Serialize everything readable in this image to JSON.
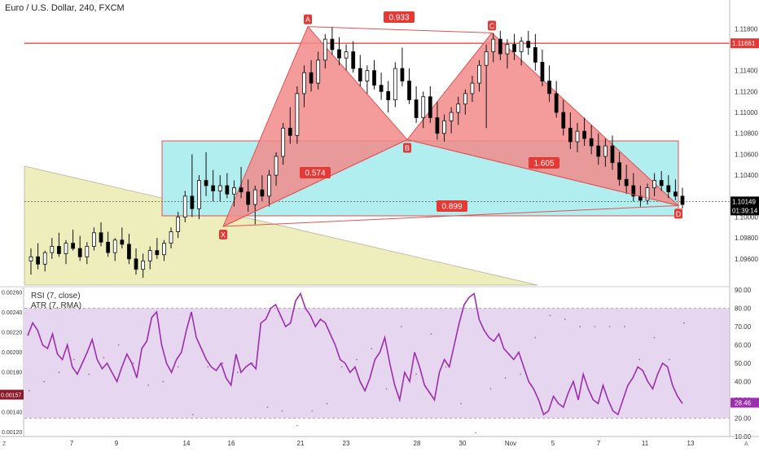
{
  "symbol_title": "Euro / U.S. Dollar, 240, FXCM",
  "indicators": {
    "rsi_label": "RSI (7, close)",
    "atr_label": "ATR (7, RMA)"
  },
  "price_axis": {
    "ticks": [
      "1.11800",
      "1.11400",
      "1.11200",
      "1.11000",
      "1.10800",
      "1.10600",
      "1.10400",
      "1.10000",
      "1.09800",
      "1.09600"
    ],
    "current_price": "1.10149",
    "countdown": "01:39:14",
    "resistance_price": "1.11661"
  },
  "atr_axis": {
    "ticks": [
      "0.00260",
      "0.00240",
      "0.00220",
      "0.00200",
      "0.00180",
      "0.00140",
      "0.00120"
    ],
    "current": "0.00157"
  },
  "rsi_axis": {
    "ticks": [
      "90.00",
      "80.00",
      "70.00",
      "60.00",
      "50.00",
      "40.00",
      "30.00",
      "20.00",
      "10.00"
    ],
    "current": "28.46"
  },
  "time_axis": {
    "labels": [
      "7",
      "9",
      "14",
      "16",
      "21",
      "23",
      "28",
      "30",
      "Nov",
      "5",
      "7",
      "11",
      "13"
    ],
    "corner_left": "Z",
    "corner_right": "A"
  },
  "pattern": {
    "points": [
      "X",
      "A",
      "B",
      "C",
      "D"
    ],
    "ratios": {
      "xa_ab": "0.574",
      "ab_bc": "0.933",
      "bc_cd": "1.605",
      "xa_xd": "0.899"
    }
  },
  "colors": {
    "bull": "#ffffff",
    "bear": "#000000",
    "harmonic_fill": "#f28b8b",
    "harmonic_edge": "#e05353",
    "box_fill": "#b1eef0",
    "zone_fill": "#eeeebd",
    "rsi_band": "#e6d6ef",
    "rsi_line": "#9b2fae",
    "resistance": "#e53935",
    "price_badge": "#000000",
    "label_red": "#e53935"
  },
  "chart_data": {
    "type": "candlestick",
    "title": "Euro / U.S. Dollar, 240, FXCM",
    "price_range": [
      1.0935,
      1.1195
    ],
    "time_labels": [
      "7",
      "9",
      "14",
      "16",
      "21",
      "23",
      "28",
      "30",
      "Nov",
      "5",
      "7",
      "11",
      "13"
    ],
    "current_price": 1.10149,
    "resistance_level": 1.11661,
    "harmonic_pattern": {
      "X": 1.0991,
      "A": 1.1182,
      "B": 1.1074,
      "C": 1.1176,
      "D": 1.1011,
      "ratios": {
        "AB/XA": 0.574,
        "BC/AB": 0.933,
        "CD/BC": 1.605,
        "XD/XA": 0.899
      }
    },
    "candles": [
      {
        "o": 1.0958,
        "h": 1.097,
        "l": 1.0945,
        "c": 1.0962
      },
      {
        "o": 1.0962,
        "h": 1.0975,
        "l": 1.095,
        "c": 1.0955
      },
      {
        "o": 1.0955,
        "h": 1.0968,
        "l": 1.0948,
        "c": 1.0966
      },
      {
        "o": 1.0966,
        "h": 1.098,
        "l": 1.096,
        "c": 1.0972
      },
      {
        "o": 1.0972,
        "h": 1.0985,
        "l": 1.0962,
        "c": 1.0965
      },
      {
        "o": 1.0965,
        "h": 1.0978,
        "l": 1.0955,
        "c": 1.0975
      },
      {
        "o": 1.0975,
        "h": 1.0988,
        "l": 1.0968,
        "c": 1.097
      },
      {
        "o": 1.097,
        "h": 1.0982,
        "l": 1.0958,
        "c": 1.0962
      },
      {
        "o": 1.0962,
        "h": 1.0976,
        "l": 1.0955,
        "c": 1.0972
      },
      {
        "o": 1.0972,
        "h": 1.099,
        "l": 1.0968,
        "c": 1.0985
      },
      {
        "o": 1.0985,
        "h": 1.0995,
        "l": 1.0972,
        "c": 1.0976
      },
      {
        "o": 1.0976,
        "h": 1.0986,
        "l": 1.0962,
        "c": 1.0966
      },
      {
        "o": 1.0966,
        "h": 1.098,
        "l": 1.0958,
        "c": 1.0978
      },
      {
        "o": 1.0978,
        "h": 1.099,
        "l": 1.097,
        "c": 1.0974
      },
      {
        "o": 1.0974,
        "h": 1.0984,
        "l": 1.0955,
        "c": 1.096
      },
      {
        "o": 1.096,
        "h": 1.097,
        "l": 1.0945,
        "c": 1.095
      },
      {
        "o": 1.095,
        "h": 1.0965,
        "l": 1.0942,
        "c": 1.0958
      },
      {
        "o": 1.0958,
        "h": 1.0972,
        "l": 1.095,
        "c": 1.0968
      },
      {
        "o": 1.0968,
        "h": 1.098,
        "l": 1.096,
        "c": 1.0964
      },
      {
        "o": 1.0964,
        "h": 1.0978,
        "l": 1.0958,
        "c": 1.0975
      },
      {
        "o": 1.0975,
        "h": 1.099,
        "l": 1.097,
        "c": 1.0986
      },
      {
        "o": 1.0986,
        "h": 1.1005,
        "l": 1.098,
        "c": 1.1
      },
      {
        "o": 1.1,
        "h": 1.1025,
        "l": 1.0995,
        "c": 1.102
      },
      {
        "o": 1.102,
        "h": 1.106,
        "l": 1.1,
        "c": 1.1008
      },
      {
        "o": 1.1008,
        "h": 1.104,
        "l": 1.0998,
        "c": 1.1035
      },
      {
        "o": 1.1035,
        "h": 1.1062,
        "l": 1.102,
        "c": 1.103
      },
      {
        "o": 1.103,
        "h": 1.1045,
        "l": 1.1015,
        "c": 1.1025
      },
      {
        "o": 1.1025,
        "h": 1.104,
        "l": 1.1015,
        "c": 1.103
      },
      {
        "o": 1.103,
        "h": 1.1042,
        "l": 1.1018,
        "c": 1.1022
      },
      {
        "o": 1.1022,
        "h": 1.1035,
        "l": 1.101,
        "c": 1.1028
      },
      {
        "o": 1.1028,
        "h": 1.1048,
        "l": 1.1018,
        "c": 1.1024
      },
      {
        "o": 1.1024,
        "h": 1.1036,
        "l": 1.1005,
        "c": 1.1012
      },
      {
        "o": 1.1012,
        "h": 1.103,
        "l": 1.0993,
        "c": 1.1026
      },
      {
        "o": 1.1026,
        "h": 1.104,
        "l": 1.1015,
        "c": 1.102
      },
      {
        "o": 1.102,
        "h": 1.1045,
        "l": 1.101,
        "c": 1.104
      },
      {
        "o": 1.104,
        "h": 1.1062,
        "l": 1.103,
        "c": 1.1058
      },
      {
        "o": 1.1058,
        "h": 1.109,
        "l": 1.105,
        "c": 1.1085
      },
      {
        "o": 1.1085,
        "h": 1.1105,
        "l": 1.107,
        "c": 1.1078
      },
      {
        "o": 1.1078,
        "h": 1.1125,
        "l": 1.107,
        "c": 1.1118
      },
      {
        "o": 1.1118,
        "h": 1.1145,
        "l": 1.1105,
        "c": 1.1138
      },
      {
        "o": 1.1138,
        "h": 1.115,
        "l": 1.112,
        "c": 1.1128
      },
      {
        "o": 1.1128,
        "h": 1.1158,
        "l": 1.1122,
        "c": 1.115
      },
      {
        "o": 1.115,
        "h": 1.1175,
        "l": 1.1142,
        "c": 1.117
      },
      {
        "o": 1.117,
        "h": 1.1182,
        "l": 1.1155,
        "c": 1.116
      },
      {
        "o": 1.116,
        "h": 1.1172,
        "l": 1.1145,
        "c": 1.1152
      },
      {
        "o": 1.1152,
        "h": 1.1165,
        "l": 1.114,
        "c": 1.1158
      },
      {
        "o": 1.1158,
        "h": 1.1168,
        "l": 1.1138,
        "c": 1.1142
      },
      {
        "o": 1.1142,
        "h": 1.1155,
        "l": 1.1125,
        "c": 1.113
      },
      {
        "o": 1.113,
        "h": 1.1145,
        "l": 1.1118,
        "c": 1.114
      },
      {
        "o": 1.114,
        "h": 1.115,
        "l": 1.1122,
        "c": 1.1126
      },
      {
        "o": 1.1126,
        "h": 1.1138,
        "l": 1.1112,
        "c": 1.112
      },
      {
        "o": 1.112,
        "h": 1.113,
        "l": 1.11,
        "c": 1.1112
      },
      {
        "o": 1.1112,
        "h": 1.1148,
        "l": 1.1105,
        "c": 1.1142
      },
      {
        "o": 1.1142,
        "h": 1.1162,
        "l": 1.1125,
        "c": 1.113
      },
      {
        "o": 1.113,
        "h": 1.1142,
        "l": 1.1108,
        "c": 1.1112
      },
      {
        "o": 1.1112,
        "h": 1.1125,
        "l": 1.109,
        "c": 1.1095
      },
      {
        "o": 1.1095,
        "h": 1.112,
        "l": 1.1085,
        "c": 1.1115
      },
      {
        "o": 1.1115,
        "h": 1.1125,
        "l": 1.109,
        "c": 1.1095
      },
      {
        "o": 1.1095,
        "h": 1.111,
        "l": 1.1074,
        "c": 1.108
      },
      {
        "o": 1.108,
        "h": 1.1098,
        "l": 1.1072,
        "c": 1.1092
      },
      {
        "o": 1.1092,
        "h": 1.1105,
        "l": 1.108,
        "c": 1.11
      },
      {
        "o": 1.11,
        "h": 1.1115,
        "l": 1.1088,
        "c": 1.1108
      },
      {
        "o": 1.1108,
        "h": 1.1122,
        "l": 1.1098,
        "c": 1.1118
      },
      {
        "o": 1.1118,
        "h": 1.1135,
        "l": 1.111,
        "c": 1.1128
      },
      {
        "o": 1.1128,
        "h": 1.115,
        "l": 1.112,
        "c": 1.1145
      },
      {
        "o": 1.1145,
        "h": 1.1165,
        "l": 1.1085,
        "c": 1.1158
      },
      {
        "o": 1.1158,
        "h": 1.1176,
        "l": 1.1148,
        "c": 1.117
      },
      {
        "o": 1.117,
        "h": 1.1178,
        "l": 1.115,
        "c": 1.1156
      },
      {
        "o": 1.1156,
        "h": 1.117,
        "l": 1.1142,
        "c": 1.1165
      },
      {
        "o": 1.1165,
        "h": 1.1175,
        "l": 1.115,
        "c": 1.1158
      },
      {
        "o": 1.1158,
        "h": 1.1172,
        "l": 1.1145,
        "c": 1.1168
      },
      {
        "o": 1.1168,
        "h": 1.1178,
        "l": 1.1155,
        "c": 1.1162
      },
      {
        "o": 1.1162,
        "h": 1.1175,
        "l": 1.114,
        "c": 1.1148
      },
      {
        "o": 1.1148,
        "h": 1.116,
        "l": 1.1125,
        "c": 1.113
      },
      {
        "o": 1.113,
        "h": 1.1145,
        "l": 1.111,
        "c": 1.1118
      },
      {
        "o": 1.1118,
        "h": 1.113,
        "l": 1.1095,
        "c": 1.11
      },
      {
        "o": 1.11,
        "h": 1.1112,
        "l": 1.1078,
        "c": 1.1085
      },
      {
        "o": 1.1085,
        "h": 1.11,
        "l": 1.1065,
        "c": 1.1072
      },
      {
        "o": 1.1072,
        "h": 1.109,
        "l": 1.1062,
        "c": 1.1082
      },
      {
        "o": 1.1082,
        "h": 1.1095,
        "l": 1.1068,
        "c": 1.1075
      },
      {
        "o": 1.1075,
        "h": 1.1088,
        "l": 1.106,
        "c": 1.1068
      },
      {
        "o": 1.1068,
        "h": 1.108,
        "l": 1.105,
        "c": 1.1058
      },
      {
        "o": 1.1058,
        "h": 1.1075,
        "l": 1.1048,
        "c": 1.1068
      },
      {
        "o": 1.1068,
        "h": 1.1078,
        "l": 1.1045,
        "c": 1.1052
      },
      {
        "o": 1.1052,
        "h": 1.1062,
        "l": 1.103,
        "c": 1.1036
      },
      {
        "o": 1.1036,
        "h": 1.105,
        "l": 1.1022,
        "c": 1.103
      },
      {
        "o": 1.103,
        "h": 1.1042,
        "l": 1.1015,
        "c": 1.102
      },
      {
        "o": 1.102,
        "h": 1.103,
        "l": 1.101,
        "c": 1.1016
      },
      {
        "o": 1.1016,
        "h": 1.1032,
        "l": 1.1012,
        "c": 1.1028
      },
      {
        "o": 1.1028,
        "h": 1.1042,
        "l": 1.102,
        "c": 1.1035
      },
      {
        "o": 1.1035,
        "h": 1.1044,
        "l": 1.1025,
        "c": 1.103
      },
      {
        "o": 1.103,
        "h": 1.104,
        "l": 1.1018,
        "c": 1.1024
      },
      {
        "o": 1.1024,
        "h": 1.1036,
        "l": 1.1016,
        "c": 1.102
      },
      {
        "o": 1.102,
        "h": 1.1028,
        "l": 1.1008,
        "c": 1.1012
      }
    ],
    "rsi": {
      "label": "RSI (7, close)",
      "band": [
        20,
        80
      ],
      "range": [
        10,
        90
      ],
      "values": [
        65,
        72,
        68,
        60,
        58,
        66,
        55,
        52,
        60,
        48,
        44,
        50,
        56,
        63,
        52,
        47,
        50,
        45,
        40,
        48,
        55,
        50,
        42,
        58,
        62,
        75,
        78,
        60,
        50,
        45,
        52,
        56,
        68,
        78,
        64,
        58,
        52,
        48,
        46,
        50,
        42,
        38,
        55,
        45,
        48,
        50,
        47,
        72,
        74,
        80,
        82,
        76,
        70,
        72,
        84,
        88,
        80,
        76,
        70,
        74,
        72,
        66,
        60,
        52,
        50,
        45,
        48,
        40,
        35,
        42,
        52,
        56,
        64,
        50,
        38,
        30,
        45,
        40,
        56,
        48,
        38,
        34,
        30,
        45,
        52,
        48,
        60,
        72,
        82,
        86,
        88,
        74,
        68,
        64,
        62,
        66,
        58,
        55,
        52,
        56,
        48,
        40,
        36,
        30,
        22,
        24,
        32,
        28,
        26,
        34,
        40,
        30,
        44,
        36,
        30,
        28,
        38,
        30,
        24,
        22,
        30,
        38,
        42,
        48,
        46,
        40,
        36,
        44,
        50,
        48,
        38,
        32,
        28
      ],
      "current": 28.46
    },
    "atr": {
      "label": "ATR (7, RMA)",
      "range": [
        0.00115,
        0.00262
      ],
      "current": 0.00157
    }
  }
}
